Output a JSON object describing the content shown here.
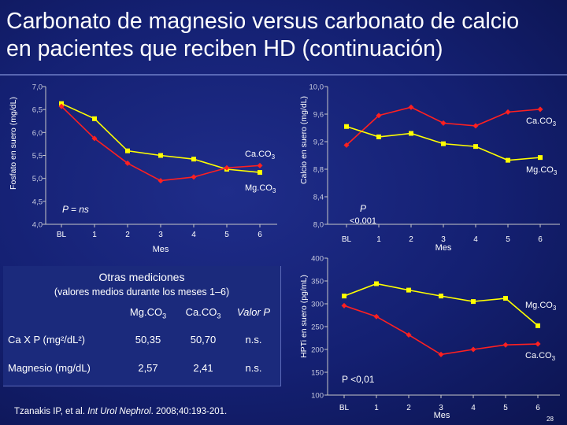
{
  "slide": {
    "title_line1": "Carbonato de magnesio versus carbonato de calcio",
    "title_line2": "en pacientes que reciben HD (continuación)",
    "page_number": "28",
    "footnote_prefix": "Tzanakis IP, et al. ",
    "footnote_journal": "Int Urol Nephrol",
    "footnote_suffix": ". 2008;40:193-201."
  },
  "colors": {
    "series_mg": "#ffff00",
    "series_ca": "#ff2020",
    "axis": "#c8c8c8",
    "background": "#142072"
  },
  "table": {
    "title": "Otras mediciones",
    "subtitle": "(valores medios durante los meses 1–6)",
    "headers": [
      "Mg.CO",
      "Ca.CO",
      "Valor P"
    ],
    "header_sub": "3",
    "rows": [
      {
        "label": "Ca X P (mg²/dL²)",
        "mg": "50,35",
        "ca": "50,70",
        "p": "n.s."
      },
      {
        "label": "Magnesio (mg/dL)",
        "mg": "2,57",
        "ca": "2,41",
        "p": "n.s."
      }
    ]
  },
  "chart_data": [
    {
      "type": "line",
      "title": "",
      "xlabel": "Mes",
      "ylabel": "Fosfato en suero (mg/dL)",
      "categories": [
        "BL",
        "1",
        "2",
        "3",
        "4",
        "5",
        "6"
      ],
      "ylim": [
        4.0,
        7.0
      ],
      "yticks": [
        "4,0",
        "4,5",
        "5,0",
        "5,5",
        "6,0",
        "6,5",
        "7,0"
      ],
      "yticks_values": [
        4.0,
        4.5,
        5.0,
        5.5,
        6.0,
        6.5,
        7.0
      ],
      "series": [
        {
          "name": "Mg.CO3",
          "label_main": "Mg.CO",
          "label_sub": "3",
          "values": [
            6.63,
            6.3,
            5.6,
            5.5,
            5.42,
            5.2,
            5.13
          ]
        },
        {
          "name": "Ca.CO3",
          "label_main": "Ca.CO",
          "label_sub": "3",
          "values": [
            6.57,
            5.87,
            5.33,
            4.95,
            5.03,
            5.23,
            5.28
          ]
        }
      ],
      "annotation": "P = ns"
    },
    {
      "type": "line",
      "title": "",
      "xlabel": "Mes",
      "ylabel": "Calcio en suero (mg/dL)",
      "categories": [
        "BL",
        "1",
        "2",
        "3",
        "4",
        "5",
        "6"
      ],
      "ylim": [
        8.0,
        10.0
      ],
      "yticks": [
        "8,0",
        "8,4",
        "8,8",
        "9,2",
        "9,6",
        "10,0"
      ],
      "yticks_values": [
        8.0,
        8.4,
        8.8,
        9.2,
        9.6,
        10.0
      ],
      "series": [
        {
          "name": "Ca.CO3",
          "label_main": "Ca.CO",
          "label_sub": "3",
          "values": [
            9.15,
            9.58,
            9.7,
            9.47,
            9.43,
            9.63,
            9.67
          ]
        },
        {
          "name": "Mg.CO3",
          "label_main": "Mg.CO",
          "label_sub": "3",
          "values": [
            9.42,
            9.27,
            9.32,
            9.17,
            9.13,
            8.93,
            8.97
          ]
        }
      ],
      "annotation_line1": "P",
      "annotation_line2": "<0,001"
    },
    {
      "type": "line",
      "title": "",
      "xlabel": "Mes",
      "ylabel": "HPTi en suero (pg/mL)",
      "categories": [
        "BL",
        "1",
        "2",
        "3",
        "4",
        "5",
        "6"
      ],
      "ylim": [
        100,
        400
      ],
      "yticks": [
        "100",
        "150",
        "200",
        "250",
        "300",
        "350",
        "400"
      ],
      "yticks_values": [
        100,
        150,
        200,
        250,
        300,
        350,
        400
      ],
      "series": [
        {
          "name": "Mg.CO3",
          "label_main": "Mg.CO",
          "label_sub": "3",
          "values": [
            317,
            344,
            330,
            317,
            305,
            312,
            252
          ]
        },
        {
          "name": "Ca.CO3",
          "label_main": "Ca.CO",
          "label_sub": "3",
          "values": [
            296,
            272,
            232,
            189,
            200,
            210,
            212
          ]
        }
      ],
      "annotation": "P <0,01"
    }
  ]
}
